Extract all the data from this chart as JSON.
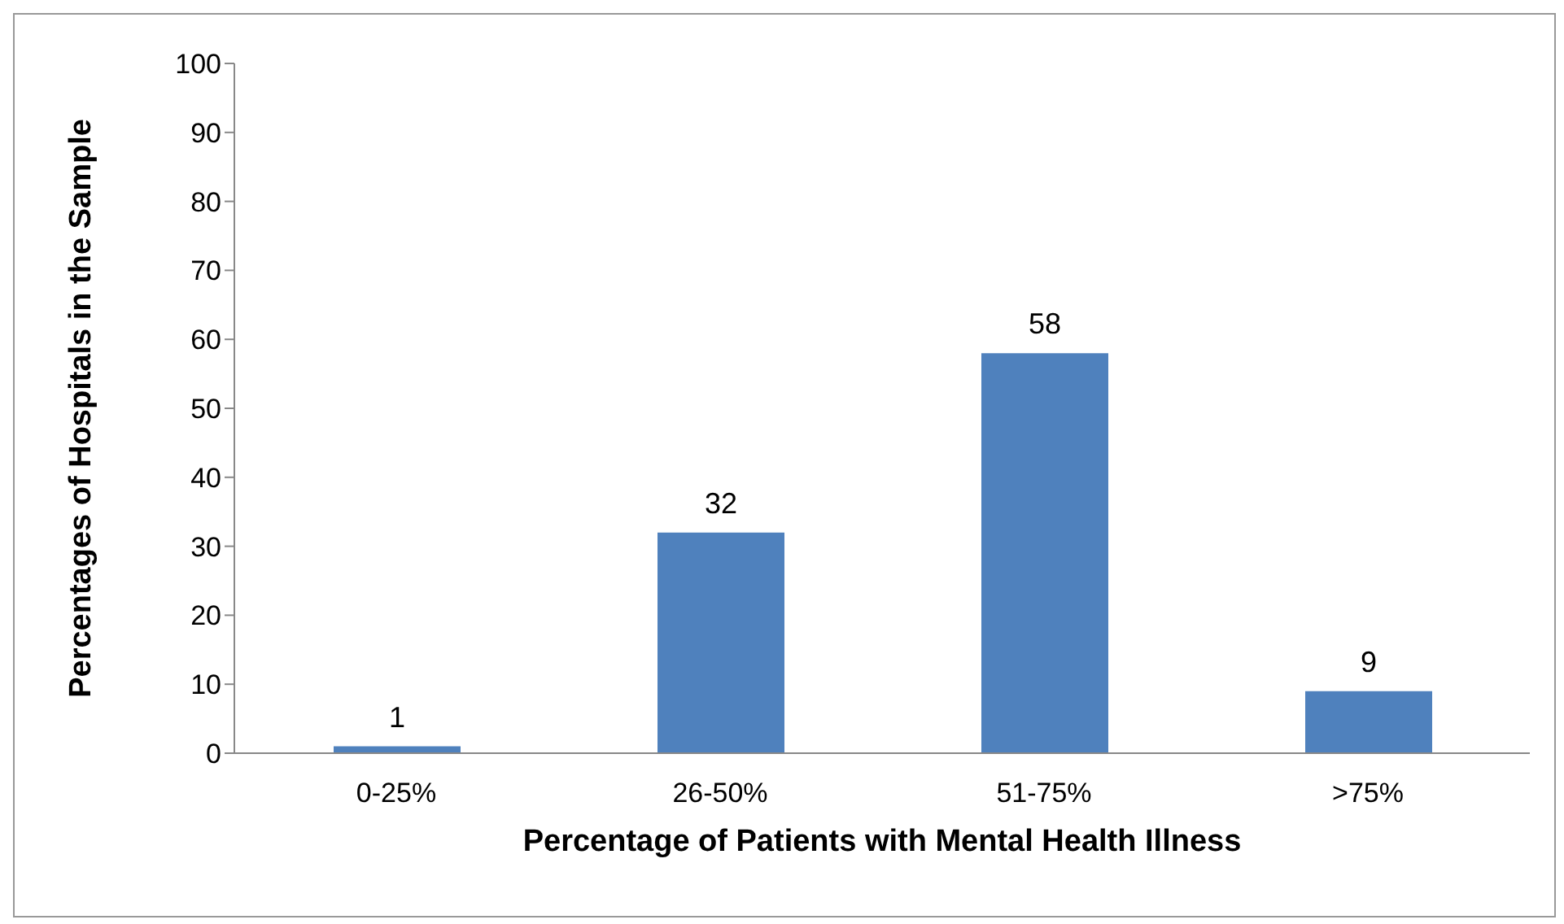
{
  "chart_data": {
    "type": "bar",
    "xlabel": "Percentage of Patients with Mental Health Illness",
    "ylabel": "Percentages of Hospitals in the Sample",
    "categories": [
      "0-25%",
      "26-50%",
      "51-75%",
      ">75%"
    ],
    "values": [
      1,
      32,
      58,
      9
    ],
    "color": "#4f81bd",
    "ylim": [
      0,
      100
    ],
    "yticks": [
      0,
      10,
      20,
      30,
      40,
      50,
      60,
      70,
      80,
      90,
      100
    ],
    "grid": false,
    "data_labels": true
  }
}
